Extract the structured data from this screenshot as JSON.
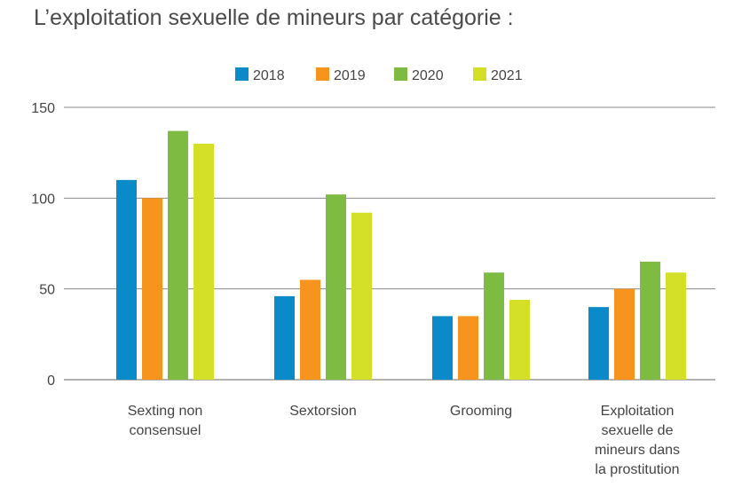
{
  "title": "L’exploitation sexuelle de mineurs par catégorie :",
  "chart_data": {
    "type": "bar",
    "title": "L’exploitation sexuelle de mineurs par catégorie :",
    "xlabel": "",
    "ylabel": "",
    "ylim": [
      0,
      150
    ],
    "yticks": [
      0,
      50,
      100,
      150
    ],
    "grid": true,
    "legend_position": "top-center",
    "categories": [
      [
        "Sexting non",
        "consensuel"
      ],
      [
        "Sextorsion"
      ],
      [
        "Grooming"
      ],
      [
        "Exploitation",
        "sexuelle de",
        "mineurs dans",
        "la prostitution"
      ]
    ],
    "series": [
      {
        "name": "2018",
        "color": "#0a8ac8",
        "values": [
          110,
          46,
          35,
          40
        ]
      },
      {
        "name": "2019",
        "color": "#f7941d",
        "values": [
          100,
          55,
          35,
          50
        ]
      },
      {
        "name": "2020",
        "color": "#7dbb42",
        "values": [
          137,
          102,
          59,
          65
        ]
      },
      {
        "name": "2021",
        "color": "#d4df28",
        "values": [
          130,
          92,
          44,
          59
        ]
      }
    ]
  }
}
